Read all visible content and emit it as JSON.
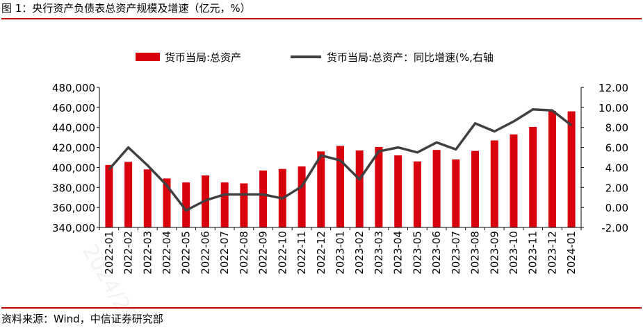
{
  "figure_title": "图 1：央行资产负债表总资产规模及增速（亿元，%）",
  "source_note": "资料来源：Wind，中信证券研究部",
  "watermark": "2024/29",
  "colors": {
    "bar": "#d9000d",
    "line": "#404040",
    "rule": "#c00000"
  },
  "chart_data": {
    "type": "bar",
    "title": "",
    "categories": [
      "2022-01",
      "2022-02",
      "2022-03",
      "2022-04",
      "2022-05",
      "2022-06",
      "2022-07",
      "2022-08",
      "2022-09",
      "2022-10",
      "2022-11",
      "2022-12",
      "2023-01",
      "2023-02",
      "2023-03",
      "2023-04",
      "2023-05",
      "2023-06",
      "2023-07",
      "2023-08",
      "2023-09",
      "2023-10",
      "2023-11",
      "2023-12",
      "2024-01"
    ],
    "series": [
      {
        "name": "货币当局:总资产",
        "type": "bar",
        "axis": "left",
        "values": [
          402500,
          405500,
          398000,
          389000,
          385000,
          392000,
          385000,
          384000,
          397000,
          398500,
          401000,
          416000,
          421500,
          417000,
          420500,
          412000,
          406000,
          417500,
          408000,
          416500,
          427000,
          433000,
          440500,
          456500,
          456000
        ]
      },
      {
        "name": "货币当局:总资产：同比增速(%,右轴",
        "type": "line",
        "axis": "right",
        "values": [
          3.8,
          6.0,
          4.2,
          2.2,
          -0.3,
          0.7,
          1.3,
          1.3,
          1.3,
          0.9,
          2.1,
          5.2,
          4.7,
          2.8,
          5.6,
          6.0,
          5.5,
          6.5,
          5.8,
          8.4,
          7.6,
          8.6,
          9.8,
          9.7,
          8.2
        ]
      }
    ],
    "y_left": {
      "min": 340000,
      "max": 480000,
      "step": 20000,
      "tick_labels": [
        "340,000",
        "360,000",
        "380,000",
        "400,000",
        "420,000",
        "440,000",
        "460,000",
        "480,000"
      ]
    },
    "y_right": {
      "min": -2,
      "max": 12,
      "step": 2,
      "tick_labels": [
        "-2.00",
        "0.00",
        "2.00",
        "4.00",
        "6.00",
        "8.00",
        "10.00",
        "12.00"
      ]
    },
    "xlabel": "",
    "ylabel": "",
    "legend_position": "top-center",
    "grid": false
  }
}
